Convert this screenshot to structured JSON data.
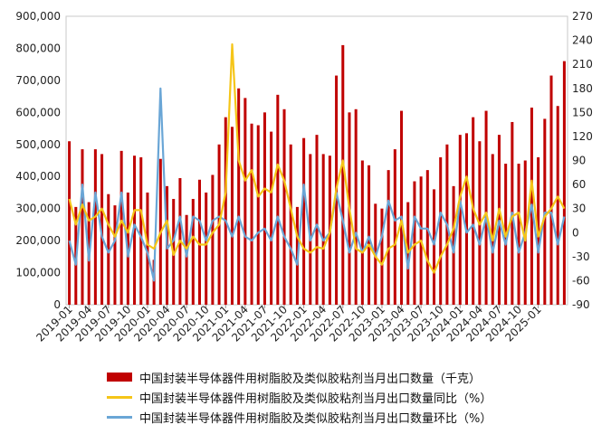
{
  "chart_data": {
    "type": "bar+line",
    "left_axis": {
      "min": 0,
      "max": 900000,
      "ticks": [
        "0",
        "100,000",
        "200,000",
        "300,000",
        "400,000",
        "500,000",
        "600,000",
        "700,000",
        "800,000",
        "900,000"
      ]
    },
    "right_axis": {
      "min": -90,
      "max": 270,
      "ticks": [
        "-90",
        "-60",
        "-30",
        "0",
        "30",
        "60",
        "90",
        "120",
        "150",
        "180",
        "210",
        "240",
        "270"
      ]
    },
    "x_tick_labels": [
      "2019-01",
      "2019-04",
      "2019-07",
      "2019-10",
      "2020-01",
      "2020-04",
      "2020-07",
      "2020-10",
      "2021-01",
      "2021-04",
      "2021-07",
      "2021-10",
      "2022-01",
      "2022-04",
      "2022-07",
      "2022-10",
      "2023-01",
      "2023-04",
      "2023-07",
      "2023-10",
      "2024-01",
      "2024-04",
      "2024-07",
      "2024-10",
      "2025-01"
    ],
    "series": [
      {
        "name": "中国封装半导体器件用树脂胶及类似胶粘剂当月出口数量（千克）",
        "axis": "left",
        "kind": "bar",
        "color": "#c00000",
        "values": [
          510000,
          305000,
          485000,
          320000,
          485000,
          470000,
          345000,
          310000,
          480000,
          350000,
          465000,
          460000,
          350000,
          140000,
          455000,
          370000,
          330000,
          395000,
          280000,
          330000,
          390000,
          350000,
          405000,
          500000,
          585000,
          555000,
          675000,
          645000,
          565000,
          560000,
          600000,
          540000,
          655000,
          610000,
          500000,
          305000,
          520000,
          470000,
          530000,
          470000,
          465000,
          715000,
          810000,
          600000,
          610000,
          450000,
          435000,
          315000,
          300000,
          420000,
          485000,
          605000,
          320000,
          385000,
          400000,
          420000,
          360000,
          460000,
          500000,
          370000,
          530000,
          535000,
          585000,
          510000,
          605000,
          470000,
          530000,
          440000,
          570000,
          440000,
          450000,
          615000,
          460000,
          580000,
          715000,
          620000,
          760000
        ]
      },
      {
        "name": "中国封装半导体器件用树脂胶及类似胶粘剂当月出口数量同比（%）",
        "axis": "right",
        "kind": "line",
        "color": "#f5c518",
        "values": [
          42,
          10,
          35,
          15,
          20,
          30,
          10,
          -5,
          15,
          0,
          28,
          28,
          -15,
          -20,
          0,
          15,
          -28,
          -10,
          -20,
          -5,
          -15,
          -15,
          0,
          10,
          50,
          235,
          90,
          65,
          78,
          45,
          55,
          50,
          85,
          65,
          30,
          -5,
          -20,
          -25,
          -18,
          -20,
          0,
          55,
          90,
          30,
          -20,
          -25,
          -15,
          -30,
          -40,
          -20,
          -15,
          15,
          -25,
          -15,
          -10,
          -35,
          -50,
          -30,
          -15,
          5,
          45,
          70,
          30,
          10,
          25,
          -10,
          30,
          -5,
          20,
          25,
          -10,
          65,
          -5,
          20,
          30,
          45,
          30
        ]
      },
      {
        "name": "中国封装半导体器件用树脂胶及类似胶粘剂当月出口数量环比（%）",
        "axis": "right",
        "kind": "line",
        "color": "#6aa6d6",
        "values": [
          -10,
          -40,
          60,
          -35,
          50,
          -5,
          -25,
          -10,
          50,
          -30,
          10,
          -5,
          -25,
          -60,
          180,
          -20,
          -10,
          20,
          -30,
          20,
          15,
          -10,
          15,
          20,
          15,
          -5,
          20,
          -5,
          -10,
          0,
          5,
          -10,
          20,
          -5,
          -20,
          -40,
          60,
          -10,
          10,
          -10,
          0,
          50,
          15,
          -25,
          0,
          -25,
          -5,
          -30,
          -5,
          40,
          15,
          20,
          -45,
          20,
          5,
          5,
          -15,
          25,
          10,
          -25,
          40,
          0,
          10,
          -15,
          20,
          -25,
          15,
          -15,
          25,
          -25,
          0,
          35,
          -25,
          25,
          25,
          -15,
          20
        ]
      }
    ]
  },
  "legend": [
    {
      "label": "中国封装半导体器件用树脂胶及类似胶粘剂当月出口数量（千克）",
      "color": "#c00000"
    },
    {
      "label": "中国封装半导体器件用树脂胶及类似胶粘剂当月出口数量同比（%）",
      "color": "#f5c518"
    },
    {
      "label": "中国封装半导体器件用树脂胶及类似胶粘剂当月出口数量环比（%）",
      "color": "#6aa6d6"
    }
  ]
}
